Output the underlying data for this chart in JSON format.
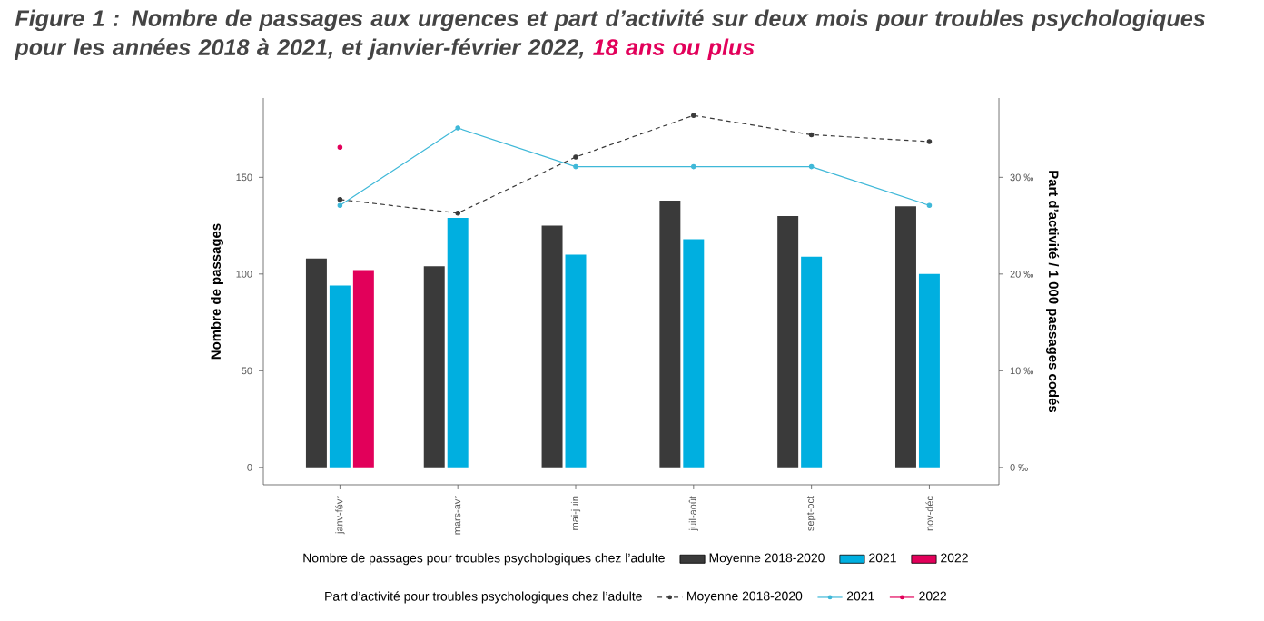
{
  "chart_data": {
    "type": "bar",
    "title": "Figure 1 : Nombre de passages aux urgences et part d’activité sur deux mois pour troubles psychologiques pour les années 2018 à 2021, et janvier-février 2022,",
    "subtitle": "18 ans ou plus",
    "ylabel": "Nombre de passages",
    "y2label": "Part d’activité / 1 000 passages codés",
    "legend_title": [
      "Nombre de passages pour troubles psychologiques chez l’adulte",
      "Part d’activité pour troubles psychologiques chez l’adulte"
    ],
    "categories": [
      "janv-févr",
      "mars-avr",
      "mai-juin",
      "juil-août",
      "sept-oct",
      "nov-déc"
    ],
    "series": [
      {
        "name": "Moyenne 2018-2020",
        "color": "#3a3a3a",
        "values": [
          108,
          104,
          125,
          138,
          130,
          135
        ]
      },
      {
        "name": "2021",
        "color": "#00afe0",
        "values": [
          94,
          129,
          110,
          118,
          109,
          100
        ]
      },
      {
        "name": "2022",
        "color": "#e2005a",
        "values": [
          102,
          null,
          null,
          null,
          null,
          null
        ]
      },
      {
        "name": "Moyenne 2018-2020",
        "type": "line",
        "axis": "y2",
        "line_style": "dashed",
        "color": "#3a3a3a",
        "values": [
          27.7,
          26.3,
          32.1,
          36.4,
          34.4,
          33.7
        ]
      },
      {
        "name": "2021",
        "type": "line",
        "axis": "y2",
        "line_style": "solid",
        "color": "#3fb8d8",
        "values": [
          27.1,
          35.1,
          31.1,
          31.1,
          31.1,
          27.1
        ]
      },
      {
        "name": "2022",
        "type": "line",
        "axis": "y2",
        "line_style": "solid",
        "color": "#e2005a",
        "values": [
          33.1,
          null,
          null,
          null,
          null,
          null
        ]
      }
    ],
    "ylim": [
      -9,
      191
    ],
    "yticks": [
      0,
      50,
      100,
      150
    ],
    "y2lim": [
      -1.8,
      38.2
    ],
    "y2ticks": [
      {
        "value": 0,
        "label": "0 ‰"
      },
      {
        "value": 10,
        "label": "10 ‰"
      },
      {
        "value": 20,
        "label": "20 ‰"
      },
      {
        "value": 30,
        "label": "30 ‰"
      }
    ],
    "marker": "circle",
    "legend": "bottom",
    "grid": false
  }
}
